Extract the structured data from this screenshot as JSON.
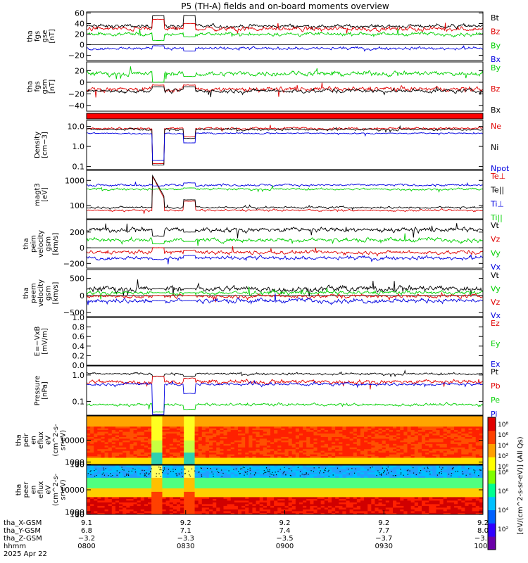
{
  "title": "P5 (TH-A) fields and on-board moments overview",
  "chart_data": [
    {
      "id": "fgs_gse",
      "type": "line",
      "ylabel": [
        "tha",
        "fgs",
        "gse",
        "[nT]"
      ],
      "ylim": [
        -30,
        62
      ],
      "ticks": [
        {
          "v": 60,
          "t": "60"
        },
        {
          "v": 40,
          "t": "40"
        },
        {
          "v": 20,
          "t": "20"
        },
        {
          "v": 0,
          "t": "0"
        },
        {
          "v": -20,
          "t": "−20"
        }
      ],
      "zero_line": true,
      "series": [
        {
          "name": "Bt",
          "color": "#000000",
          "base": 35,
          "noise": 5,
          "hilo": {
            "a": {
              "type": "const",
              "val": 55
            },
            "b": {
              "type": "const",
              "val": 55
            }
          }
        },
        {
          "name": "Bz",
          "color": "#e00000",
          "base": 30,
          "noise": 6,
          "hilo": {
            "a": {
              "type": "const",
              "val": 48
            },
            "b": {
              "type": "const",
              "val": 40
            }
          }
        },
        {
          "name": "By",
          "color": "#00d000",
          "base": 20,
          "noise": 5,
          "hilo": {
            "a": {
              "type": "const",
              "val": 8
            },
            "b": {
              "type": "const",
              "val": 15
            }
          }
        },
        {
          "name": "Bx",
          "color": "#0000e0",
          "base": -7,
          "noise": 4,
          "hilo": {
            "a": {
              "type": "const",
              "val": -2
            },
            "b": {
              "type": "const",
              "val": -12
            }
          }
        }
      ]
    },
    {
      "id": "fgs_gsm",
      "type": "line",
      "ylabel": [
        "tha",
        "fgs",
        "gsm",
        "[nT]"
      ],
      "ylim": [
        -50,
        35
      ],
      "ticks": [
        {
          "v": 20,
          "t": "20"
        },
        {
          "v": 0,
          "t": "0"
        },
        {
          "v": -20,
          "t": "−20"
        },
        {
          "v": -40,
          "t": "−40"
        }
      ],
      "zero_line": true,
      "series": [
        {
          "name": "By",
          "color": "#00d000",
          "base": 15,
          "noise": 6,
          "hilo": {
            "a": {
              "type": "const",
              "val": 0
            },
            "b": {
              "type": "const",
              "val": 10
            }
          }
        },
        {
          "name": "Bz",
          "color": "#e00000",
          "base": -12,
          "noise": 6,
          "hilo": {
            "a": {
              "type": "const",
              "val": -5
            },
            "b": {
              "type": "const",
              "val": -5
            }
          }
        },
        {
          "name": "Bx",
          "color": "#000000",
          "base": -15,
          "noise": 5,
          "hilo": {
            "a": {
              "type": "const",
              "val": -8
            },
            "b": {
              "type": "const",
              "val": -8
            }
          }
        }
      ]
    },
    {
      "id": "mode_bar",
      "type": "bar"
    },
    {
      "id": "density",
      "type": "line",
      "log": true,
      "ylabel": [
        "Density",
        "[cm−3]"
      ],
      "ylim": [
        0.07,
        20
      ],
      "ticks": [
        {
          "v": 10,
          "t": "10.0"
        },
        {
          "v": 1,
          "t": "1.0"
        },
        {
          "v": 0.1,
          "t": "0.1"
        }
      ],
      "series": [
        {
          "name": "Ne",
          "color": "#e00000",
          "base": 8,
          "noise": 0.08,
          "hilo": {
            "a": {
              "type": "const",
              "val": 0.14
            },
            "b": {
              "type": "const",
              "val": 3
            }
          }
        },
        {
          "name": "Ni",
          "color": "#000000",
          "base": 7,
          "noise": 0.08,
          "hilo": {
            "a": {
              "type": "const",
              "val": 0.12
            },
            "b": {
              "type": "const",
              "val": 2.5
            }
          }
        },
        {
          "name": "Npot",
          "color": "#0000e0",
          "base": 4.5,
          "noise": 0.05,
          "hilo": {
            "a": {
              "type": "const",
              "val": 0.2
            },
            "b": {
              "type": "const",
              "val": 1.5
            }
          }
        }
      ]
    },
    {
      "id": "temp",
      "type": "line",
      "log": true,
      "ylabel": [
        "magt3",
        "[eV]"
      ],
      "ylim": [
        30,
        2500
      ],
      "ticks": [
        {
          "v": 1000,
          "t": "1000"
        },
        {
          "v": 100,
          "t": "100"
        }
      ],
      "series": [
        {
          "name": "Te⊥",
          "color": "#e00000",
          "base": 65,
          "noise": 0.06,
          "hilo": {
            "a": {
              "type": "decay",
              "from": 1600,
              "to": 200
            },
            "b": {
              "type": "const",
              "val": 150
            }
          }
        },
        {
          "name": "Te||",
          "color": "#000000",
          "base": 85,
          "noise": 0.06,
          "hilo": {
            "a": {
              "type": "decay",
              "from": 1700,
              "to": 240
            },
            "b": {
              "type": "const",
              "val": 170
            }
          }
        },
        {
          "name": "Ti⊥",
          "color": "#0000e0",
          "base": 650,
          "noise": 0.06,
          "hilo": {
            "a": {
              "type": "const",
              "val": 600
            },
            "b": {
              "type": "const",
              "val": 800
            }
          }
        },
        {
          "name": "Ti||",
          "color": "#00d000",
          "base": 450,
          "noise": 0.06,
          "hilo": {
            "a": {
              "type": "const",
              "val": 450
            },
            "b": {
              "type": "const",
              "val": 500
            }
          }
        }
      ]
    },
    {
      "id": "peim_vel",
      "type": "line",
      "ylabel": [
        "tha",
        "peim",
        "velocity",
        "gsm",
        "[km/s]"
      ],
      "ylim": [
        -260,
        360
      ],
      "ticks": [
        {
          "v": 200,
          "t": "200"
        },
        {
          "v": 0,
          "t": "0"
        },
        {
          "v": -200,
          "t": "−200"
        }
      ],
      "zero_line": true,
      "series": [
        {
          "name": "Vt",
          "color": "#000000",
          "base": 230,
          "noise": 45,
          "hilo": {
            "a": {
              "type": "const",
              "val": 150
            },
            "b": {
              "type": "const",
              "val": 200
            }
          }
        },
        {
          "name": "Vz",
          "color": "#e00000",
          "base": -60,
          "noise": 35,
          "hilo": {
            "a": {
              "type": "const",
              "val": 0
            },
            "b": {
              "type": "const",
              "val": -30
            }
          }
        },
        {
          "name": "Vy",
          "color": "#00d000",
          "base": 100,
          "noise": 40,
          "hilo": {
            "a": {
              "type": "const",
              "val": 50
            },
            "b": {
              "type": "const",
              "val": 80
            }
          }
        },
        {
          "name": "Vx",
          "color": "#0000e0",
          "base": -130,
          "noise": 35,
          "hilo": {
            "a": {
              "type": "const",
              "val": -150
            },
            "b": {
              "type": "const",
              "val": -100
            }
          }
        }
      ]
    },
    {
      "id": "peem_vel",
      "type": "line",
      "ylabel": [
        "tha",
        "peem",
        "velocity",
        "gsm",
        "[km/s]"
      ],
      "ylim": [
        -620,
        760
      ],
      "ticks": [
        {
          "v": 500,
          "t": "500"
        },
        {
          "v": 0,
          "t": "0"
        },
        {
          "v": -500,
          "t": "−500"
        }
      ],
      "zero_line": true,
      "series": [
        {
          "name": "Vt",
          "color": "#000000",
          "base": 200,
          "noise": 130,
          "hilo": {
            "a": {
              "type": "const",
              "val": 200
            },
            "b": {
              "type": "const",
              "val": 200
            }
          }
        },
        {
          "name": "Vy",
          "color": "#00d000",
          "base": 80,
          "noise": 80,
          "hilo": {
            "a": {
              "type": "const",
              "val": 80
            },
            "b": {
              "type": "const",
              "val": 80
            }
          }
        },
        {
          "name": "Vz",
          "color": "#e00000",
          "base": -20,
          "noise": 80,
          "hilo": {
            "a": {
              "type": "const",
              "val": 0
            },
            "b": {
              "type": "const",
              "val": 0
            }
          }
        },
        {
          "name": "Vx",
          "color": "#0000e0",
          "base": -150,
          "noise": 100,
          "hilo": {
            "a": {
              "type": "const",
              "val": -150
            },
            "b": {
              "type": "const",
              "val": -150
            }
          }
        }
      ]
    },
    {
      "id": "efield",
      "type": "line",
      "ylabel": [
        "E=−VxB",
        "[mV/m]"
      ],
      "ylim": [
        0,
        1
      ],
      "ticks": [
        {
          "v": 1.0,
          "t": "1.0"
        },
        {
          "v": 0.8,
          "t": "0.8"
        },
        {
          "v": 0.6,
          "t": "0.6"
        },
        {
          "v": 0.4,
          "t": "0.4"
        },
        {
          "v": 0.2,
          "t": "0.2"
        },
        {
          "v": 0.0,
          "t": "0.0"
        }
      ],
      "series": [
        {
          "name": "Ez",
          "color": "#e00000",
          "empty": true
        },
        {
          "name": "Ey",
          "color": "#00d000",
          "empty": true
        },
        {
          "name": "Ex",
          "color": "#0000e0",
          "empty": true
        }
      ]
    },
    {
      "id": "pressure",
      "type": "line",
      "log": true,
      "ylabel": [
        "Pressure",
        "[nPa]"
      ],
      "ylim": [
        0.03,
        2.2
      ],
      "ticks": [
        {
          "v": 1,
          "t": "1.0"
        },
        {
          "v": 0.1,
          "t": "0.1"
        }
      ],
      "series": [
        {
          "name": "Pt",
          "color": "#000000",
          "base": 1.1,
          "noise": 0.06,
          "hilo": {
            "a": {
              "type": "const",
              "val": 0.9
            },
            "b": {
              "type": "const",
              "val": 0.9
            }
          }
        },
        {
          "name": "Pb",
          "color": "#e00000",
          "base": 0.55,
          "noise": 0.12,
          "hilo": {
            "a": {
              "type": "const",
              "val": 0.9
            },
            "b": {
              "type": "const",
              "val": 0.75
            }
          }
        },
        {
          "name": "Pe",
          "color": "#00d000",
          "base": 0.075,
          "noise": 0.08,
          "hilo": {
            "a": {
              "type": "const",
              "val": 0.04
            },
            "b": {
              "type": "const",
              "val": 0.05
            }
          }
        },
        {
          "name": "Pi",
          "color": "#0000e0",
          "base": 0.45,
          "noise": 0.08,
          "hilo": {
            "a": {
              "type": "const",
              "val": 0.03
            },
            "b": {
              "type": "const",
              "val": 0.2
            }
          }
        }
      ]
    },
    {
      "id": "peir_spec",
      "type": "heatmap",
      "ylabel": [
        "tha",
        "peir",
        "en",
        "eflux",
        "eV",
        "(cm^2-s-",
        "sr-eV)"
      ],
      "ylim": [
        5,
        20000
      ],
      "ticks": [
        {
          "v": 10000,
          "t": "10000"
        },
        {
          "v": 1000,
          "t": "1000"
        },
        {
          "v": 100,
          "t": "100"
        },
        {
          "v": 10,
          "t": "10"
        }
      ]
    },
    {
      "id": "peer_spec",
      "type": "heatmap",
      "ylabel": [
        "tha",
        "peer",
        "en",
        "eflux",
        "eV",
        "(cm^2-s-",
        "sr-eV)"
      ],
      "ylim": [
        5,
        20000
      ],
      "ticks": [
        {
          "v": 10000,
          "t": "10000"
        },
        {
          "v": 1000,
          "t": "1000"
        },
        {
          "v": 100,
          "t": "100"
        },
        {
          "v": 10,
          "t": "10"
        }
      ]
    }
  ],
  "colorbar": {
    "label": "[eV/(cm^2-s-sr-eV)] (All Qs)",
    "ticks_upper": [
      "10⁸",
      "10⁶",
      "10⁴",
      "10²",
      "10⁰"
    ],
    "ticks_lower": [
      "10⁸",
      "10⁶",
      "10⁴",
      "10²"
    ]
  },
  "xaxis": {
    "row_labels": [
      "tha_X-GSM",
      "tha_Y-GSM",
      "tha_Z-GSM",
      "hhmm",
      "2025 Apr 22"
    ],
    "tick_hours": [
      8,
      8.5,
      9,
      9.5,
      10
    ],
    "columns": [
      {
        "x": "9.1",
        "y": "6.8",
        "z": "−3.2",
        "hhmm": "0800"
      },
      {
        "x": "9.2",
        "y": "7.1",
        "z": "−3.3",
        "hhmm": "0830"
      },
      {
        "x": "9.2",
        "y": "7.4",
        "z": "−3.5",
        "hhmm": "0900"
      },
      {
        "x": "9.2",
        "y": "7.7",
        "z": "−3.7",
        "hhmm": "0930"
      },
      {
        "x": "9.2",
        "y": "8.0",
        "z": "−3.8",
        "hhmm": "1000"
      }
    ],
    "xlim_hours": [
      8,
      10
    ],
    "event_hours": [
      [
        8.33,
        8.39
      ],
      [
        8.49,
        8.55
      ]
    ]
  }
}
